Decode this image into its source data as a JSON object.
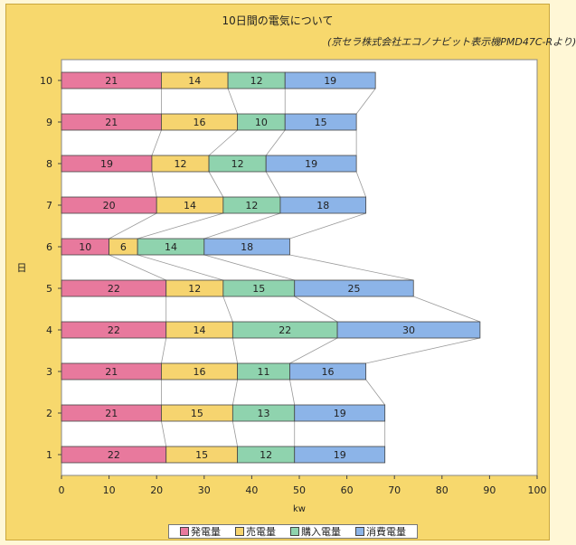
{
  "chart_data": {
    "type": "bar",
    "stacked": true,
    "orientation": "horizontal",
    "title": "10日間の電気について",
    "note": "(京セラ株式会社エコノナビット表示機PMD47C-Rより)",
    "xlabel": "kw",
    "ylabel": "日",
    "xlim": [
      0,
      100
    ],
    "xticks": [
      "0",
      "10",
      "20",
      "30",
      "40",
      "50",
      "60",
      "70",
      "80",
      "90",
      "100"
    ],
    "categories": [
      "1",
      "2",
      "3",
      "4",
      "5",
      "6",
      "7",
      "8",
      "9",
      "10"
    ],
    "series": [
      {
        "name": "発電量",
        "color": "#e8799d",
        "values": [
          22,
          21,
          21,
          22,
          22,
          10,
          20,
          19,
          21,
          21
        ]
      },
      {
        "name": "売電量",
        "color": "#f6d46f",
        "values": [
          15,
          15,
          16,
          14,
          12,
          6,
          14,
          12,
          16,
          14
        ]
      },
      {
        "name": "購入電量",
        "color": "#8fd3ae",
        "values": [
          12,
          13,
          11,
          22,
          15,
          14,
          12,
          12,
          10,
          12
        ]
      },
      {
        "name": "消費電量",
        "color": "#8cb4e8",
        "values": [
          19,
          19,
          16,
          30,
          25,
          18,
          18,
          19,
          15,
          19
        ]
      }
    ],
    "grid": false,
    "legend_position": "bottom",
    "series_lines": true
  }
}
